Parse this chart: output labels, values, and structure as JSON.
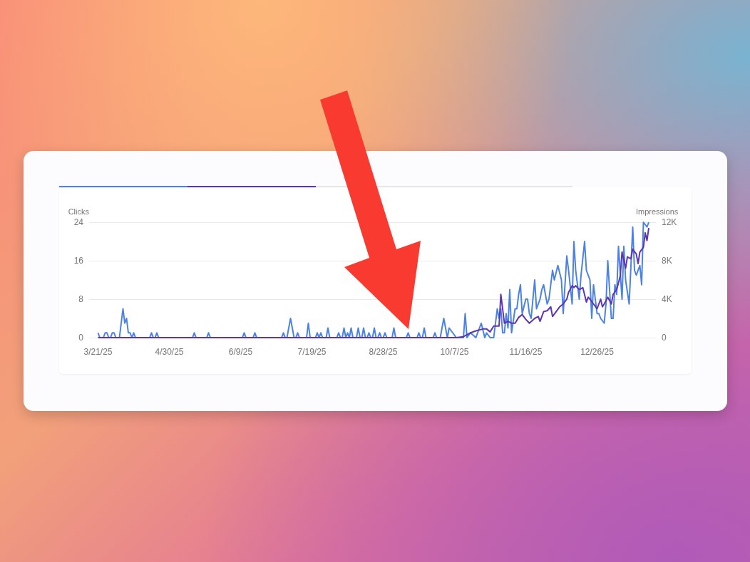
{
  "chart_data": {
    "type": "line",
    "ylabel": "Clicks",
    "y2label": "Impressions",
    "xlim": [
      "2025-03-16",
      "2026-01-28"
    ],
    "xticks": [
      {
        "value": "2025-03-21",
        "label": "3/21/25"
      },
      {
        "value": "2025-04-30",
        "label": "4/30/25"
      },
      {
        "value": "2025-06-09",
        "label": "6/9/25"
      },
      {
        "value": "2025-07-19",
        "label": "7/19/25"
      },
      {
        "value": "2025-08-28",
        "label": "8/28/25"
      },
      {
        "value": "2025-10-07",
        "label": "10/7/25"
      },
      {
        "value": "2025-11-16",
        "label": "11/16/25"
      },
      {
        "value": "2025-12-26",
        "label": "12/26/25"
      }
    ],
    "ylim": [
      0,
      24
    ],
    "yticks": [
      0,
      8,
      16,
      24
    ],
    "y2lim": [
      0,
      12000
    ],
    "y2ticks": [
      0,
      {
        "value": 4000,
        "label": "4K"
      },
      {
        "value": 8000,
        "label": "8K"
      },
      {
        "value": 12000,
        "label": "12K"
      }
    ],
    "grid": "y",
    "series": [
      {
        "color": "#4a82e6",
        "axis": "y",
        "x": [
          "2025-03-21",
          "2025-03-22",
          "2025-03-24",
          "2025-03-25",
          "2025-03-26",
          "2025-03-27",
          "2025-03-28",
          "2025-03-29",
          "2025-03-30",
          "2025-03-31",
          "2025-04-02",
          "2025-04-04",
          "2025-04-05",
          "2025-04-06",
          "2025-04-07",
          "2025-04-08",
          "2025-04-09",
          "2025-04-10",
          "2025-04-11",
          "2025-04-19",
          "2025-04-20",
          "2025-04-21",
          "2025-04-22",
          "2025-04-23",
          "2025-04-24",
          "2025-05-13",
          "2025-05-14",
          "2025-05-15",
          "2025-05-21",
          "2025-05-22",
          "2025-05-23",
          "2025-06-10",
          "2025-06-11",
          "2025-06-12",
          "2025-06-16",
          "2025-06-17",
          "2025-06-18",
          "2025-07-02",
          "2025-07-03",
          "2025-07-04",
          "2025-07-05",
          "2025-07-07",
          "2025-07-09",
          "2025-07-10",
          "2025-07-11",
          "2025-07-12",
          "2025-07-16",
          "2025-07-17",
          "2025-07-18",
          "2025-07-21",
          "2025-07-22",
          "2025-07-23",
          "2025-07-24",
          "2025-07-25",
          "2025-07-27",
          "2025-07-28",
          "2025-07-29",
          "2025-08-02",
          "2025-08-03",
          "2025-08-04",
          "2025-08-05",
          "2025-08-06",
          "2025-08-07",
          "2025-08-08",
          "2025-08-09",
          "2025-08-10",
          "2025-08-11",
          "2025-08-13",
          "2025-08-14",
          "2025-08-15",
          "2025-08-16",
          "2025-08-17",
          "2025-08-18",
          "2025-08-19",
          "2025-08-20",
          "2025-08-21",
          "2025-08-22",
          "2025-08-23",
          "2025-08-24",
          "2025-08-25",
          "2025-08-26",
          "2025-08-27",
          "2025-08-28",
          "2025-08-29",
          "2025-08-30",
          "2025-09-02",
          "2025-09-03",
          "2025-09-04",
          "2025-09-10",
          "2025-09-11",
          "2025-09-12",
          "2025-09-16",
          "2025-09-17",
          "2025-09-18",
          "2025-09-19",
          "2025-09-20",
          "2025-09-21",
          "2025-09-25",
          "2025-09-26",
          "2025-09-27",
          "2025-09-29",
          "2025-10-01",
          "2025-10-03",
          "2025-10-04",
          "2025-10-06",
          "2025-10-08",
          "2025-10-12",
          "2025-10-13",
          "2025-10-14",
          "2025-10-16",
          "2025-10-19",
          "2025-10-22",
          "2025-10-24",
          "2025-10-25",
          "2025-10-27",
          "2025-10-29",
          "2025-10-31",
          "2025-11-01",
          "2025-11-02",
          "2025-11-03",
          "2025-11-04",
          "2025-11-05",
          "2025-11-06",
          "2025-11-07",
          "2025-11-08",
          "2025-11-10",
          "2025-11-11",
          "2025-11-12",
          "2025-11-13",
          "2025-11-14",
          "2025-11-16",
          "2025-11-17",
          "2025-11-18",
          "2025-11-19",
          "2025-11-21",
          "2025-11-22",
          "2025-11-24",
          "2025-11-25",
          "2025-11-26",
          "2025-11-28",
          "2025-11-29",
          "2025-12-01",
          "2025-12-02",
          "2025-12-04",
          "2025-12-06",
          "2025-12-07",
          "2025-12-09",
          "2025-12-10",
          "2025-12-12",
          "2025-12-13",
          "2025-12-14",
          "2025-12-16",
          "2025-12-17",
          "2025-12-19",
          "2025-12-20",
          "2025-12-22",
          "2025-12-23",
          "2025-12-24",
          "2025-12-25",
          "2025-12-26",
          "2025-12-27",
          "2025-12-28",
          "2025-12-30",
          "2025-12-31",
          "2026-01-01",
          "2026-01-03",
          "2026-01-04",
          "2026-01-05",
          "2026-01-06",
          "2026-01-07",
          "2026-01-09",
          "2026-01-10",
          "2026-01-11",
          "2026-01-13",
          "2026-01-15",
          "2026-01-16",
          "2026-01-17",
          "2026-01-19",
          "2026-01-20",
          "2026-01-21",
          "2026-01-23",
          "2026-01-24"
        ],
        "values": [
          1,
          0,
          0,
          1,
          1,
          0,
          0,
          1,
          1,
          0,
          0,
          6,
          3,
          4,
          1,
          1,
          0,
          1,
          0,
          0,
          1,
          0,
          0,
          1,
          0,
          0,
          1,
          0,
          0,
          1,
          0,
          0,
          1,
          0,
          0,
          1,
          0,
          0,
          1,
          0,
          0,
          4,
          0,
          0,
          1,
          0,
          0,
          3,
          0,
          0,
          1,
          0,
          1,
          0,
          0,
          2,
          0,
          0,
          1,
          0,
          0,
          2,
          0,
          1,
          0,
          2,
          0,
          0,
          2,
          0,
          0,
          2,
          0,
          0,
          1,
          0,
          0,
          2,
          0,
          0,
          1,
          0,
          0,
          1,
          0,
          0,
          2,
          0,
          0,
          1,
          0,
          0,
          1,
          0,
          0,
          2,
          0,
          0,
          1,
          0,
          0,
          4,
          0,
          2,
          1,
          0,
          0,
          5,
          0,
          1,
          0,
          3,
          0,
          1,
          0,
          0,
          6,
          4,
          6,
          1,
          1,
          5,
          2,
          10,
          1,
          6,
          6,
          9,
          11,
          5,
          8,
          8,
          5,
          4,
          12,
          6,
          8,
          10,
          11,
          7,
          8,
          14,
          12,
          15,
          12,
          5,
          17,
          14,
          7,
          20,
          14,
          8,
          13,
          20,
          14,
          12,
          4,
          11,
          8,
          5,
          5,
          4,
          3,
          7,
          16,
          4,
          4,
          11,
          9,
          19,
          8,
          19,
          12,
          7,
          23,
          14,
          13,
          15,
          11,
          24,
          23,
          24
        ]
      },
      {
        "color": "#5e35b1",
        "axis": "y2",
        "x": [
          "2025-03-21",
          "2025-09-27",
          "2025-10-08",
          "2025-10-12",
          "2025-10-16",
          "2025-10-19",
          "2025-10-23",
          "2025-10-25",
          "2025-10-27",
          "2025-10-29",
          "2025-11-01",
          "2025-11-02",
          "2025-11-04",
          "2025-11-06",
          "2025-11-08",
          "2025-11-10",
          "2025-11-12",
          "2025-11-14",
          "2025-11-16",
          "2025-11-17",
          "2025-11-18",
          "2025-11-21",
          "2025-11-23",
          "2025-11-24",
          "2025-11-26",
          "2025-11-28",
          "2025-11-30",
          "2025-12-01",
          "2025-12-03",
          "2025-12-05",
          "2025-12-07",
          "2025-12-09",
          "2025-12-10",
          "2025-12-12",
          "2025-12-13",
          "2025-12-14",
          "2025-12-16",
          "2025-12-18",
          "2025-12-20",
          "2025-12-21",
          "2025-12-22",
          "2025-12-24",
          "2025-12-26",
          "2025-12-28",
          "2025-12-29",
          "2025-12-30",
          "2026-01-01",
          "2026-01-03",
          "2026-01-04",
          "2026-01-06",
          "2026-01-08",
          "2026-01-09",
          "2026-01-11",
          "2026-01-12",
          "2026-01-14",
          "2026-01-15",
          "2026-01-17",
          "2026-01-18",
          "2026-01-19",
          "2026-01-21",
          "2026-01-22",
          "2026-01-23",
          "2026-01-24"
        ],
        "values": [
          0,
          0,
          0,
          100,
          500,
          700,
          900,
          900,
          600,
          1200,
          1200,
          4500,
          1500,
          1700,
          1500,
          1500,
          2100,
          2400,
          1900,
          1700,
          1500,
          2000,
          2200,
          1700,
          2700,
          2800,
          3200,
          2200,
          2700,
          3200,
          3500,
          4000,
          4700,
          5400,
          5200,
          5400,
          5000,
          5200,
          3700,
          4200,
          4000,
          3500,
          3000,
          4000,
          3200,
          3500,
          4200,
          3500,
          4500,
          5000,
          6400,
          8900,
          7200,
          8400,
          8200,
          9200,
          8700,
          7700,
          8900,
          9400,
          10900,
          10100,
          11400
        ]
      }
    ]
  }
}
